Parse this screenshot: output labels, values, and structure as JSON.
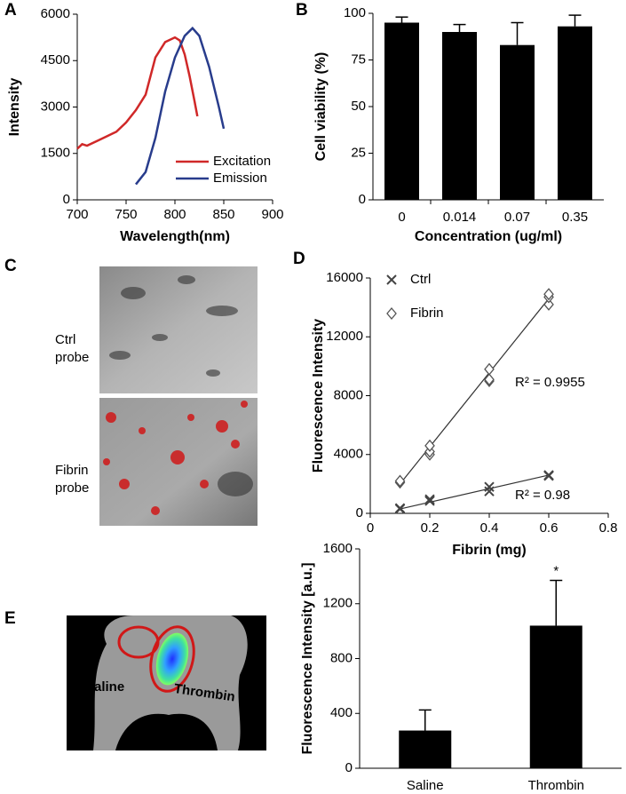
{
  "chart_data": [
    {
      "type": "line",
      "panel": "A",
      "x_label": "Wavelength(nm)",
      "y_label": "Intensity",
      "xlim": [
        700,
        900
      ],
      "xticks": [
        700,
        750,
        800,
        850,
        900
      ],
      "ylim": [
        0,
        6000
      ],
      "yticks": [
        0,
        1500,
        3000,
        4500,
        6000
      ],
      "legend": "lower right",
      "series": [
        {
          "name": "Excitation",
          "color": "#d02828",
          "x": [
            700,
            705,
            710,
            720,
            730,
            740,
            750,
            760,
            770,
            775,
            780,
            790,
            800,
            805,
            810,
            815,
            820,
            823
          ],
          "values": [
            1650,
            1800,
            1750,
            1900,
            2050,
            2200,
            2500,
            2900,
            3400,
            4000,
            4600,
            5100,
            5250,
            5150,
            4700,
            4000,
            3200,
            2700
          ]
        },
        {
          "name": "Emission",
          "color": "#283c8c",
          "x": [
            760,
            770,
            780,
            790,
            800,
            810,
            818,
            825,
            835,
            845,
            850
          ],
          "values": [
            500,
            900,
            2000,
            3500,
            4600,
            5300,
            5550,
            5300,
            4300,
            3000,
            2300
          ]
        }
      ]
    },
    {
      "type": "bar",
      "panel": "B",
      "x_label": "Concentration (ug/ml)",
      "y_label": "Cell viability (%)",
      "categories": [
        "0",
        "0.014",
        "0.07",
        "0.35"
      ],
      "values": [
        95,
        90,
        83,
        93
      ],
      "errors": [
        3,
        4,
        12,
        6
      ],
      "color": "#000000",
      "ylim": [
        0,
        100
      ],
      "yticks": [
        0,
        25,
        50,
        75,
        100
      ]
    },
    {
      "type": "scatter",
      "panel": "D",
      "x_label": "Fibrin (mg)",
      "y_label": "Fluorescence Intensity",
      "xlim": [
        0,
        0.8
      ],
      "xticks": [
        0,
        0.2,
        0.4,
        0.6,
        0.8
      ],
      "ylim": [
        0,
        16000
      ],
      "yticks": [
        0,
        4000,
        8000,
        12000,
        16000
      ],
      "legend": "upper left",
      "series": [
        {
          "name": "Ctrl",
          "marker": "x",
          "color": "#444444",
          "x": [
            0.1,
            0.1,
            0.2,
            0.2,
            0.4,
            0.4,
            0.6,
            0.6
          ],
          "values": [
            350,
            300,
            850,
            950,
            1500,
            1800,
            2550,
            2600
          ],
          "trendline": {
            "x": [
              0.1,
              0.6
            ],
            "values": [
              300,
              2600
            ]
          },
          "annotation": "R² = 0.98"
        },
        {
          "name": "Fibrin",
          "marker": "diamond",
          "color": "#555555",
          "x": [
            0.1,
            0.1,
            0.2,
            0.2,
            0.2,
            0.4,
            0.4,
            0.4,
            0.6,
            0.6,
            0.6
          ],
          "values": [
            2100,
            2200,
            4000,
            4200,
            4600,
            9000,
            9100,
            9800,
            14200,
            14700,
            14900
          ],
          "trendline": {
            "x": [
              0.1,
              0.6
            ],
            "values": [
              2000,
              14600
            ]
          },
          "annotation": "R² = 0.9955"
        }
      ]
    },
    {
      "type": "bar",
      "y_label": "Fluorescence Intensity [a.u.]",
      "categories": [
        "Saline",
        "Thrombin"
      ],
      "values": [
        275,
        1040
      ],
      "errors": [
        150,
        330
      ],
      "color": "#000000",
      "ylim": [
        0,
        1600
      ],
      "yticks": [
        0,
        400,
        800,
        1200,
        1600
      ],
      "value_annotations": [
        null,
        "*"
      ]
    }
  ],
  "images": [
    {
      "panel": "C",
      "captions": [
        [
          "Ctrl",
          "probe"
        ],
        [
          "Fibrin",
          "probe"
        ]
      ]
    },
    {
      "panel": "E",
      "captions": [
        [
          "Saline"
        ],
        [
          "Thrombin"
        ]
      ]
    }
  ]
}
